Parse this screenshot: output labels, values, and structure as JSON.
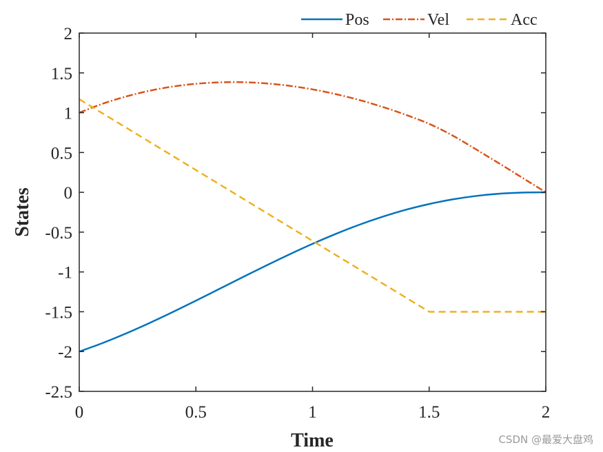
{
  "chart_data": {
    "type": "line",
    "title": "",
    "xlabel": "Time",
    "ylabel": "States",
    "xlim": [
      0,
      2
    ],
    "ylim": [
      -2.5,
      2
    ],
    "xticks": [
      0,
      0.5,
      1,
      1.5,
      2
    ],
    "xtick_labels": [
      "0",
      "0.5",
      "1",
      "1.5",
      "2"
    ],
    "yticks": [
      2,
      1.5,
      1,
      0.5,
      0,
      -0.5,
      -1,
      -1.5,
      -2,
      -2.5
    ],
    "ytick_labels": [
      "2",
      "1.5",
      "1",
      "0.5",
      "0",
      "-0.5",
      "-1",
      "-1.5",
      "-2",
      "-2.5"
    ],
    "grid": false,
    "legend": "top-right, horizontal, outside",
    "series": [
      {
        "name": "Pos",
        "color": "#0072BD",
        "style": "solid",
        "x": [
          0,
          0.1,
          0.2,
          0.3,
          0.4,
          0.5,
          0.6,
          0.7,
          0.8,
          0.9,
          1.0,
          1.1,
          1.2,
          1.3,
          1.4,
          1.5,
          1.6,
          1.7,
          1.8,
          1.9,
          2.0
        ],
        "y": [
          -2.0,
          -1.893,
          -1.773,
          -1.643,
          -1.505,
          -1.361,
          -1.214,
          -1.067,
          -0.922,
          -0.781,
          -0.647,
          -0.522,
          -0.408,
          -0.307,
          -0.219,
          -0.147,
          -0.089,
          -0.046,
          -0.017,
          -0.003,
          0.0
        ]
      },
      {
        "name": "Vel",
        "color": "#D95319",
        "style": "dashdot",
        "x": [
          0,
          0.1,
          0.2,
          0.3,
          0.4,
          0.5,
          0.6,
          0.7,
          0.8,
          0.9,
          1.0,
          1.1,
          1.2,
          1.3,
          1.4,
          1.5,
          1.6,
          1.7,
          1.8,
          1.9,
          2.0
        ],
        "y": [
          1.0,
          1.112,
          1.203,
          1.275,
          1.328,
          1.363,
          1.381,
          1.383,
          1.368,
          1.338,
          1.293,
          1.233,
          1.16,
          1.073,
          0.973,
          0.86,
          0.714,
          0.541,
          0.363,
          0.182,
          0.0
        ]
      },
      {
        "name": "Acc",
        "color": "#EDB120",
        "style": "dashed",
        "x": [
          0,
          1.5,
          2.0
        ],
        "y": [
          1.17,
          -1.5,
          -1.5
        ]
      }
    ],
    "watermark": "CSDN @最爱大盘鸡"
  }
}
